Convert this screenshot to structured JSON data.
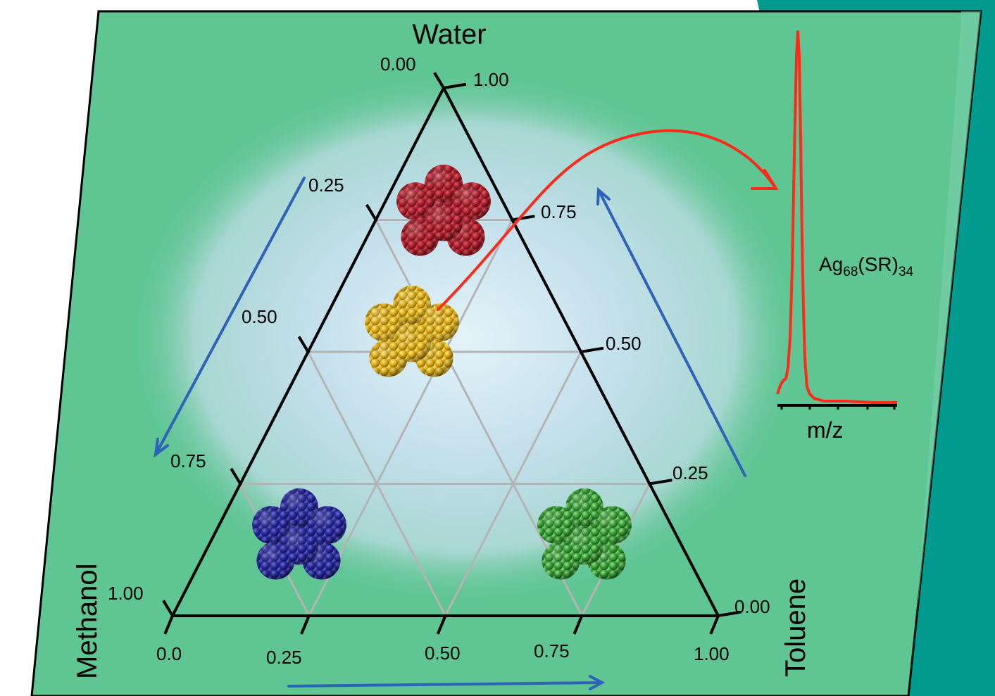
{
  "figure": {
    "vertices": {
      "top": "Water",
      "bottom_left": "Methanol",
      "bottom_right": "Toluene"
    },
    "water_axis_ticks": [
      "0.00",
      "0.25",
      "0.50",
      "0.75",
      "1.00"
    ],
    "toluene_axis_ticks": [
      "1.00",
      "0.75",
      "0.50",
      "0.25",
      "0.00"
    ],
    "methanol_axis_ticks": [
      "0.0",
      "0.25",
      "0.50",
      "0.75",
      "1.00"
    ],
    "spectrum": {
      "x_label": "m/z",
      "species": {
        "base": "Ag",
        "n_ag": "68",
        "ligand": "(SR)",
        "n_ligand": "34"
      }
    },
    "clusters": [
      {
        "name": "red",
        "color": "#b3202e"
      },
      {
        "name": "gold",
        "color": "#e6b414"
      },
      {
        "name": "blue",
        "color": "#2a2a9e"
      },
      {
        "name": "green",
        "color": "#3aa23a"
      }
    ],
    "colors": {
      "background": "#5fc593",
      "dark_panel": "#009a8e",
      "arrow_blue": "#2e63b8",
      "spectrum_red": "#ff2a1a",
      "grid": "#b4b4b4"
    }
  }
}
